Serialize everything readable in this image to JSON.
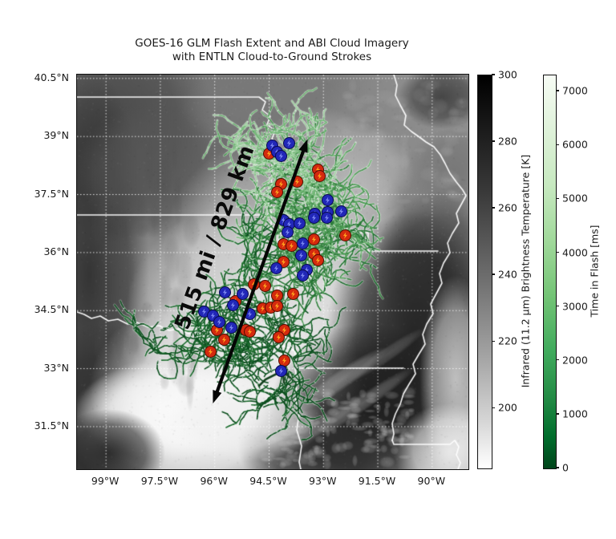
{
  "figure": {
    "title_line1": "GOES-16 GLM Flash Extent and ABI Cloud Imagery",
    "title_line2": "with ENTLN Cloud-to-Ground Strokes"
  },
  "map": {
    "extent": {
      "lon_min": -99.8,
      "lon_max": -89.0,
      "lat_min": 30.4,
      "lat_max": 40.6
    },
    "x_ticks": [
      {
        "lon": -99.0,
        "label": "99°W"
      },
      {
        "lon": -97.5,
        "label": "97.5°W"
      },
      {
        "lon": -96.0,
        "label": "96°W"
      },
      {
        "lon": -94.5,
        "label": "94.5°W"
      },
      {
        "lon": -93.0,
        "label": "93°W"
      },
      {
        "lon": -91.5,
        "label": "91.5°W"
      },
      {
        "lon": -90.0,
        "label": "90°W"
      }
    ],
    "y_ticks": [
      {
        "lat": 40.5,
        "label": "40.5°N"
      },
      {
        "lat": 39.0,
        "label": "39°N"
      },
      {
        "lat": 37.5,
        "label": "37.5°N"
      },
      {
        "lat": 36.0,
        "label": "36°N"
      },
      {
        "lat": 34.5,
        "label": "34.5°N"
      },
      {
        "lat": 33.0,
        "label": "33°N"
      },
      {
        "lat": 31.5,
        "label": "31.5°N"
      }
    ],
    "annotation": {
      "label": "515 mi / 829 km",
      "rotation_deg": -70,
      "label_lon": -96.0,
      "label_lat": 36.4,
      "arrow_start": {
        "lon": -96.05,
        "lat": 32.1
      },
      "arrow_end": {
        "lon": -93.44,
        "lat": 38.93
      }
    }
  },
  "colorbars": {
    "ir": {
      "label": "Infrared (11.2 μm) Brightness Temperature [K]",
      "vmin": 182,
      "vmax": 300,
      "tick_values": [
        300,
        280,
        260,
        240,
        220,
        200
      ],
      "colormap": "grayscale, black at top (300 K) to white at bottom"
    },
    "time": {
      "label": "Time in Flash [ms]",
      "vmin": 0,
      "vmax": 7300,
      "tick_values": [
        7000,
        6000,
        5000,
        4000,
        3000,
        2000,
        1000,
        0
      ],
      "colormap": "Greens, pale green-white at top to dark green at 0 ms (bottom)"
    }
  },
  "chart_data": {
    "type": "scatter",
    "subtype": "geographic map with satellite imagery, GLM flash-extent traces and CG stroke markers",
    "title": "GOES-16 GLM Flash Extent and ABI Cloud Imagery with ENTLN Cloud-to-Ground Strokes",
    "extent": {
      "lon": [
        -99.8,
        -89.0
      ],
      "lat": [
        30.4,
        40.6
      ]
    },
    "distance_annotation": "515 mi / 829 km",
    "flash_extent_overlay": {
      "description": "dendritic GLM flash-extent traces colored by time in flash",
      "color_range": [
        "#0d4f1f",
        "#cfe8cd"
      ]
    },
    "series": [
      {
        "name": "cg_strokes_red",
        "marker": "circle-lightning",
        "color": "#d42a0e",
        "edge_color": "#550c00",
        "bolt_color": "#ffa21f",
        "points": [
          [
            -94.49,
            38.56
          ],
          [
            -93.16,
            38.15
          ],
          [
            -93.1,
            37.98
          ],
          [
            -93.72,
            37.83
          ],
          [
            -94.16,
            37.77
          ],
          [
            -94.27,
            37.57
          ],
          [
            -92.39,
            36.44
          ],
          [
            -93.27,
            36.34
          ],
          [
            -94.11,
            36.21
          ],
          [
            -93.87,
            36.17
          ],
          [
            -93.27,
            35.96
          ],
          [
            -93.14,
            35.8
          ],
          [
            -94.11,
            35.76
          ],
          [
            -94.93,
            35.17
          ],
          [
            -94.6,
            35.13
          ],
          [
            -94.27,
            34.88
          ],
          [
            -93.83,
            34.92
          ],
          [
            -95.44,
            34.74
          ],
          [
            -94.67,
            34.55
          ],
          [
            -94.45,
            34.57
          ],
          [
            -94.27,
            34.61
          ],
          [
            -95.93,
            33.99
          ],
          [
            -95.15,
            33.99
          ],
          [
            -95.04,
            33.95
          ],
          [
            -95.75,
            33.74
          ],
          [
            -96.11,
            33.43
          ],
          [
            -94.09,
            33.99
          ],
          [
            -94.23,
            33.82
          ],
          [
            -94.09,
            33.2
          ]
        ]
      },
      {
        "name": "cg_strokes_blue",
        "marker": "circle-lightning",
        "color": "#2127b8",
        "edge_color": "#090a4e",
        "bolt_color": "#7b86f0",
        "points": [
          [
            -94.42,
            38.77
          ],
          [
            -93.94,
            38.83
          ],
          [
            -94.27,
            38.6
          ],
          [
            -94.16,
            38.5
          ],
          [
            -92.88,
            37.36
          ],
          [
            -92.5,
            37.07
          ],
          [
            -92.88,
            37.05
          ],
          [
            -93.23,
            37.0
          ],
          [
            -93.27,
            36.9
          ],
          [
            -92.9,
            36.9
          ],
          [
            -94.11,
            36.84
          ],
          [
            -93.94,
            36.73
          ],
          [
            -93.65,
            36.75
          ],
          [
            -93.98,
            36.53
          ],
          [
            -93.56,
            36.23
          ],
          [
            -93.61,
            35.92
          ],
          [
            -94.31,
            35.59
          ],
          [
            -93.45,
            35.55
          ],
          [
            -93.56,
            35.4
          ],
          [
            -95.71,
            34.97
          ],
          [
            -95.22,
            34.92
          ],
          [
            -95.49,
            34.65
          ],
          [
            -96.3,
            34.47
          ],
          [
            -96.04,
            34.36
          ],
          [
            -95.04,
            34.41
          ],
          [
            -95.88,
            34.2
          ],
          [
            -95.55,
            34.05
          ],
          [
            -94.16,
            32.95
          ]
        ]
      }
    ]
  },
  "colors": {
    "background": "#ffffff",
    "state_borders": "#ffffff",
    "gridlines": "#ffffff",
    "arrow": "#050505",
    "title_text": "#1a1a1a"
  }
}
